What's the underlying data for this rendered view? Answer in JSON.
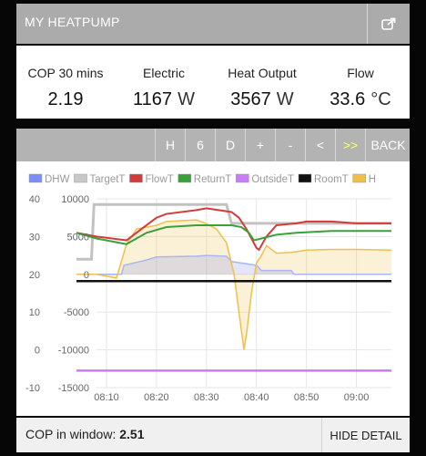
{
  "header": {
    "title": "MY HEATPUMP",
    "icon": "external-link-icon"
  },
  "stats": [
    {
      "label": "COP 30 mins",
      "value": "2.19",
      "unit": ""
    },
    {
      "label": "Electric",
      "value": "1167",
      "unit": "W"
    },
    {
      "label": "Heat Output",
      "value": "3567",
      "unit": "W"
    },
    {
      "label": "Flow",
      "value": "33.6",
      "unit": "°C"
    }
  ],
  "toolbar": {
    "buttons": [
      "H",
      "6",
      "D",
      "+",
      "-",
      "<",
      ">>",
      "BACK"
    ],
    "highlight_color": "#ffff66"
  },
  "footer": {
    "cop_label": "COP in window:",
    "cop_value": "2.51",
    "hide_label": "HIDE DETAIL"
  },
  "chart_data": {
    "type": "line",
    "legend": [
      {
        "name": "DHW",
        "color": "#7b8ef5"
      },
      {
        "name": "TargetT",
        "color": "#c8c8c8"
      },
      {
        "name": "FlowT",
        "color": "#d33b3b"
      },
      {
        "name": "ReturnT",
        "color": "#3aa03a"
      },
      {
        "name": "OutsideT",
        "color": "#c77df5"
      },
      {
        "name": "RoomT",
        "color": "#111111"
      },
      {
        "name": "H",
        "color": "#eec04a"
      }
    ],
    "y_left": {
      "ticks": [
        -10,
        0,
        10,
        20,
        30,
        40
      ],
      "range": [
        -10,
        40
      ]
    },
    "y_right": {
      "ticks": [
        -15000,
        -10000,
        -5000,
        0,
        5000,
        10000
      ],
      "range": [
        -15000,
        10000
      ]
    },
    "x_ticks": [
      "08:10",
      "08:20",
      "08:30",
      "08:40",
      "08:50",
      "09:00"
    ],
    "x_range": [
      8.0,
      67.0
    ],
    "grid": true,
    "series": [
      {
        "name": "TargetT",
        "axis": "left",
        "x": [
          4,
          7,
          7.5,
          34,
          35,
          67
        ],
        "y": [
          24,
          24,
          38.5,
          38.5,
          33.5,
          33.5
        ]
      },
      {
        "name": "FlowT",
        "axis": "left",
        "x": [
          4,
          8,
          14,
          18,
          20,
          22,
          28,
          30,
          35,
          36.5,
          38,
          40,
          40.5,
          42,
          44,
          48,
          50,
          55,
          60,
          67
        ],
        "y": [
          31,
          30,
          29,
          33,
          35,
          36,
          37,
          37.5,
          36.5,
          35,
          32,
          27,
          26.5,
          30,
          33,
          33.5,
          34,
          34,
          33.5,
          33.5
        ]
      },
      {
        "name": "ReturnT",
        "axis": "left",
        "x": [
          4,
          8,
          14,
          16,
          18,
          22,
          28,
          35,
          37,
          38.5,
          39.5,
          41,
          44,
          48,
          55,
          62,
          67
        ],
        "y": [
          31,
          29.5,
          28,
          29.5,
          31,
          32.5,
          33,
          33,
          32.5,
          31,
          29,
          29.5,
          30.5,
          31,
          31.5,
          31.5,
          31.5
        ]
      },
      {
        "name": "OutsideT",
        "axis": "left",
        "x": [
          4,
          67
        ],
        "y": [
          -5.5,
          -5.5
        ]
      },
      {
        "name": "RoomT",
        "axis": "left",
        "x": [
          4,
          67
        ],
        "y": [
          18.2,
          18.2
        ]
      },
      {
        "name": "DHW",
        "axis": "right",
        "x": [
          4,
          13,
          13.5,
          18,
          20,
          28,
          30,
          34,
          35,
          40,
          41,
          47,
          47.5,
          67
        ],
        "y": [
          0,
          0,
          1200,
          1900,
          2300,
          2400,
          2500,
          2400,
          1700,
          1200,
          500,
          500,
          0,
          0
        ]
      },
      {
        "name": "H",
        "axis": "right",
        "x": [
          4,
          8,
          12,
          14,
          16,
          20,
          22,
          28,
          30,
          32,
          34,
          35.5,
          36.5,
          37.5,
          38,
          39,
          40,
          41,
          42,
          44,
          47,
          50,
          55,
          60,
          67
        ],
        "y": [
          0,
          0,
          -500,
          4000,
          6000,
          6500,
          7000,
          7200,
          6700,
          6000,
          4200,
          100,
          -5000,
          -10000,
          -8000,
          -2500,
          1500,
          2500,
          3800,
          2800,
          2900,
          3200,
          3300,
          3300,
          3200
        ]
      }
    ]
  }
}
